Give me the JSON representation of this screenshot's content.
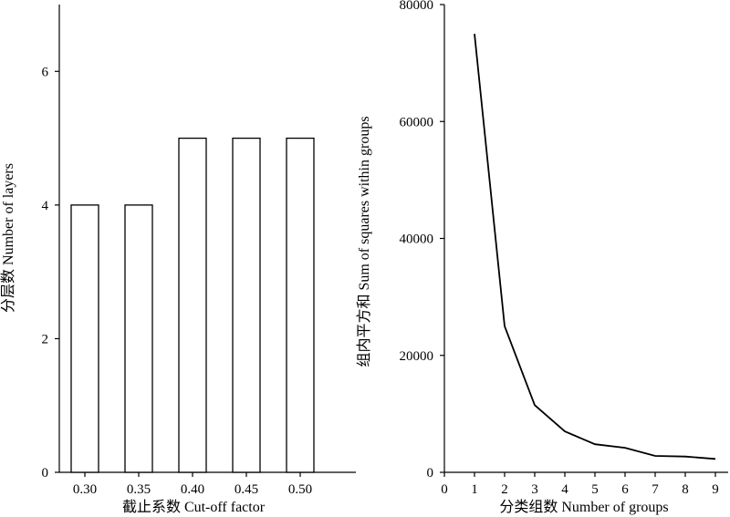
{
  "chart_data": [
    {
      "type": "bar",
      "categories": [
        "0.30",
        "0.35",
        "0.40",
        "0.45",
        "0.50"
      ],
      "values": [
        4,
        4,
        5,
        5,
        5
      ],
      "xlabel": "截止系数 Cut-off factor",
      "ylabel": "分层数 Number of layers",
      "ylim": [
        0,
        7
      ],
      "yticks": [
        0,
        2,
        4,
        6
      ],
      "grid": false
    },
    {
      "type": "line",
      "x": [
        1,
        2,
        3,
        4,
        5,
        6,
        7,
        8,
        9
      ],
      "y": [
        75000,
        25000,
        11500,
        7000,
        4800,
        4200,
        2800,
        2700,
        2300
      ],
      "xlabel": "分类组数 Number of groups",
      "ylabel": "组内平方和 Sum of squares within groups",
      "xlim": [
        0,
        9
      ],
      "ylim": [
        0,
        80000
      ],
      "xticks": [
        0,
        1,
        2,
        3,
        4,
        5,
        6,
        7,
        8,
        9
      ],
      "yticks": [
        0,
        20000,
        40000,
        60000,
        80000
      ],
      "grid": false
    }
  ]
}
